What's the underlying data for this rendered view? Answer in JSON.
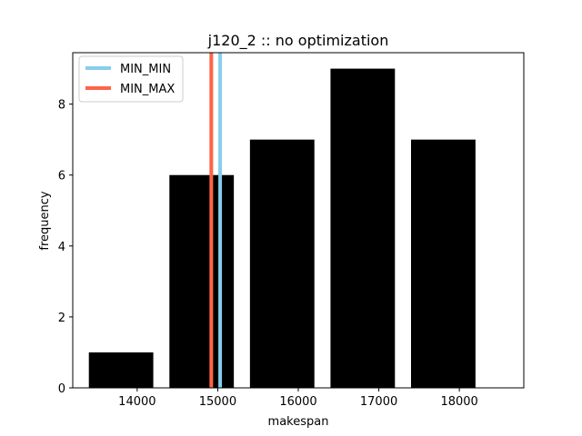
{
  "chart_data": {
    "type": "bar",
    "title": "j120_2 :: no optimization",
    "xlabel": "makespan",
    "ylabel": "frequency",
    "bins": [
      {
        "center": 13800,
        "value": 1
      },
      {
        "center": 14800,
        "value": 6
      },
      {
        "center": 15800,
        "value": 7
      },
      {
        "center": 16800,
        "value": 9
      },
      {
        "center": 17800,
        "value": 7
      }
    ],
    "bin_width": 800,
    "bar_color": "#000000",
    "xlim": [
      13200,
      18800
    ],
    "ylim": [
      0,
      9.45
    ],
    "xticks": [
      14000,
      15000,
      16000,
      17000,
      18000
    ],
    "yticks": [
      0,
      2,
      4,
      6,
      8
    ],
    "vlines": [
      {
        "name": "MIN_MIN",
        "x": 15030,
        "color": "#87ceeb"
      },
      {
        "name": "MIN_MAX",
        "x": 14920,
        "color": "#ff6347"
      }
    ],
    "legend_position": "upper left",
    "grid": false
  }
}
